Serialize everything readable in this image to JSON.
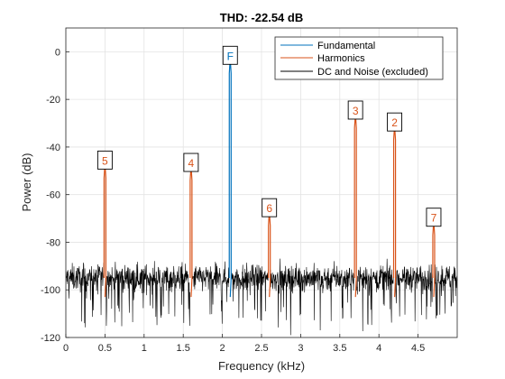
{
  "chart_data": {
    "type": "line",
    "title": "THD: -22.54 dB",
    "xlabel": "Frequency (kHz)",
    "ylabel": "Power (dB)",
    "xlim": [
      0,
      5
    ],
    "ylim": [
      -120,
      10
    ],
    "xticks": [
      0,
      0.5,
      1,
      1.5,
      2,
      2.5,
      3,
      3.5,
      4,
      4.5
    ],
    "xtick_labels": [
      "0",
      "0.5",
      "1",
      "1.5",
      "2",
      "2.5",
      "3",
      "3.5",
      "4",
      "4.5"
    ],
    "yticks": [
      -120,
      -100,
      -80,
      -60,
      -40,
      -20,
      0
    ],
    "ytick_labels": [
      "-120",
      "-100",
      "-80",
      "-60",
      "-40",
      "-20",
      "0"
    ],
    "grid": true,
    "legend_position": "top-right",
    "noise_floor_db": -95,
    "series": [
      {
        "name": "Fundamental",
        "color": "#0072BD",
        "peaks": [
          {
            "label": "F",
            "x": 2.1,
            "y": -3
          }
        ]
      },
      {
        "name": "Harmonics",
        "color": "#D95319",
        "peaks": [
          {
            "label": "2",
            "x": 4.2,
            "y": -31
          },
          {
            "label": "3",
            "x": 3.7,
            "y": -26
          },
          {
            "label": "4",
            "x": 1.6,
            "y": -48
          },
          {
            "label": "5",
            "x": 0.5,
            "y": -47
          },
          {
            "label": "6",
            "x": 2.6,
            "y": -67
          },
          {
            "label": "7",
            "x": 4.7,
            "y": -71
          }
        ]
      },
      {
        "name": "DC and Noise (excluded)",
        "color": "#000000",
        "peaks": []
      }
    ]
  }
}
